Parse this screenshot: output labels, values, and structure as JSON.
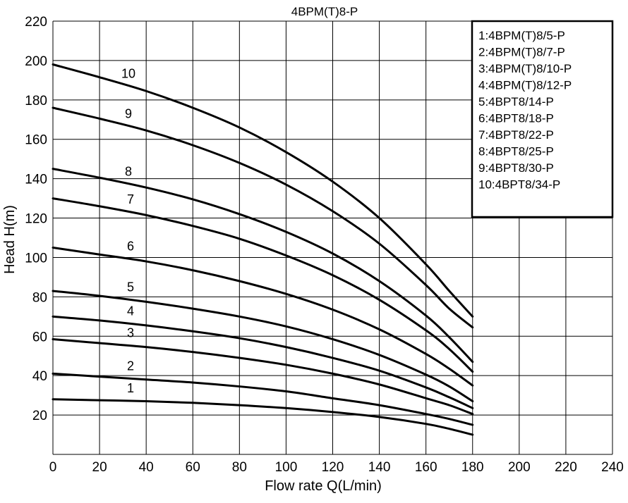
{
  "chart_data": {
    "type": "line",
    "title": "4BPM(T)8-P",
    "xlabel": "Flow rate Q(L/min)",
    "ylabel": "Head H(m)",
    "xlim": [
      0,
      240
    ],
    "ylim": [
      0,
      220
    ],
    "grid": true,
    "legend_position": "top-right",
    "x_ticks": [
      "0",
      "20",
      "40",
      "60",
      "80",
      "100",
      "120",
      "140",
      "160",
      "180",
      "200",
      "220",
      "240"
    ],
    "y_ticks": [
      "20",
      "40",
      "60",
      "80",
      "100",
      "120",
      "140",
      "160",
      "180",
      "200",
      "220"
    ],
    "x": [
      0,
      20,
      40,
      60,
      80,
      100,
      120,
      140,
      160,
      170,
      180
    ],
    "series": [
      {
        "name": "1:4BPM(T)8/5-P",
        "label": "1",
        "values": [
          28,
          27.5,
          27,
          26.2,
          25,
          23.5,
          21.5,
          19,
          15.5,
          13,
          10
        ]
      },
      {
        "name": "2:4BPM(T)8/7-P",
        "label": "2",
        "values": [
          41,
          39.5,
          38,
          36.5,
          34.5,
          32,
          28.5,
          25,
          20.5,
          18,
          15
        ]
      },
      {
        "name": "3:4BPM(T)8/10-P",
        "label": "3",
        "values": [
          58.5,
          56.5,
          54.5,
          52,
          49,
          45.5,
          41,
          35.5,
          28.5,
          25,
          20.5
        ]
      },
      {
        "name": "4:4BPM(T)8/12-P",
        "label": "4",
        "values": [
          70,
          68,
          65.5,
          62.5,
          59,
          54.5,
          49,
          42.5,
          34,
          29,
          23.5
        ]
      },
      {
        "name": "5:4BPT8/14-P",
        "label": "5",
        "values": [
          83,
          80.5,
          77.5,
          74,
          70,
          65,
          58.5,
          50.5,
          40.5,
          34.5,
          27
        ]
      },
      {
        "name": "6:4BPT8/18-P",
        "label": "6",
        "values": [
          105,
          101.5,
          98,
          93.5,
          88,
          81.5,
          73.5,
          63.5,
          51,
          43.5,
          35
        ]
      },
      {
        "name": "7:4BPT8/22-P",
        "label": "7",
        "values": [
          130,
          126,
          121.5,
          116,
          109.5,
          101,
          91,
          78.5,
          63,
          53.5,
          42
        ]
      },
      {
        "name": "8:4BPT8/25-P",
        "label": "8",
        "values": [
          145,
          140.5,
          135.5,
          129.5,
          122,
          113,
          102,
          88,
          70.5,
          59.5,
          47
        ]
      },
      {
        "name": "9:4BPT8/30-P",
        "label": "9",
        "values": [
          176,
          170.5,
          164.5,
          157,
          148,
          137,
          123.5,
          107,
          86,
          74,
          64.5
        ]
      },
      {
        "name": "10:4BPT8/34-P",
        "label": "10",
        "values": [
          198,
          191.5,
          184.5,
          176,
          166,
          153.5,
          138.5,
          120,
          96.5,
          83,
          70
        ]
      }
    ]
  }
}
